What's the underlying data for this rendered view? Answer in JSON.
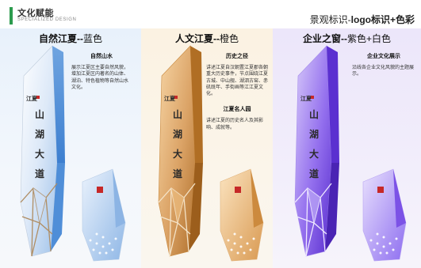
{
  "header": {
    "title": "文化赋能",
    "subtitle": "SPECIALIZED DESIGN",
    "right_prefix": "景观标识-",
    "right_bold": "logo标识+色彩"
  },
  "panels": [
    {
      "title_main": "自然江夏",
      "title_sep": "--",
      "title_color": "蓝色",
      "theme": "#6fa4e0",
      "sections": [
        {
          "heading": "自然山水",
          "body": "展示江夏区主要自然风貌，增加江夏区内著名的山体、湖泊、特色植物等自然山水文化。"
        }
      ]
    },
    {
      "title_main": "人文江夏",
      "title_sep": "--",
      "title_color": "橙色",
      "theme": "#d9953a",
      "sections": [
        {
          "heading": "历史之径",
          "body": "讲述江夏自汉朝置江夏郡各朝重大历史事件，节点围绕江夏古城、中山舰、湖泗古窑、赤矶既年、手街画等江江夏文化。"
        },
        {
          "heading": "江夏名人园",
          "body": "讲述江夏的历史名人及其影响、成就等。"
        }
      ]
    },
    {
      "title_main": "企业之窗",
      "title_sep": "--",
      "title_color": "紫色+白色",
      "theme": "#7c52e6",
      "sections": [
        {
          "heading": "企业文化展示",
          "body": "沿线各企业文化风貌的主题展示。"
        }
      ]
    }
  ],
  "sign_text": [
    "山",
    "湖",
    "大",
    "道"
  ],
  "sign_stamp": "江夏"
}
